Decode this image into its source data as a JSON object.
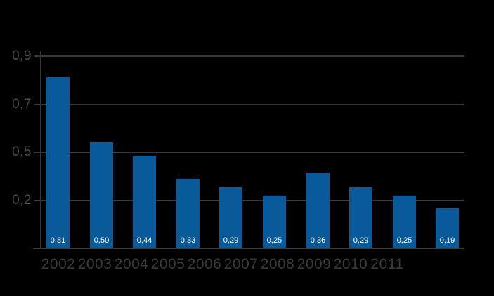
{
  "window": {
    "background_color": "#000000"
  },
  "chart_data": {
    "type": "bar",
    "title": "",
    "xlabel": "",
    "ylabel": "",
    "categories": [
      "2002",
      "2003",
      "2004",
      "2005",
      "2006",
      "2007",
      "2008",
      "2009",
      "2010",
      "2011"
    ],
    "values": [
      0.81,
      0.5,
      0.44,
      0.33,
      0.29,
      0.25,
      0.36,
      0.29,
      0.25,
      0.19
    ],
    "bar_value_labels": [
      "0,81",
      "0,50",
      "0,44",
      "0,33",
      "0,29",
      "0,25",
      "0,36",
      "0,29",
      "0,25",
      "0,19"
    ],
    "y_gridline_labels": [
      "0,9",
      "0,7",
      "0,5",
      "0,2"
    ],
    "decimal_separator": ",",
    "grid": true,
    "legend": "none",
    "colors": {
      "background": "#000000",
      "bar": "#085a9b",
      "gridline": "#3a3a3a",
      "axis": "#3a3a3a",
      "y_tick_label": "#4b4b4f",
      "x_category_label": "#3a3a3e",
      "bar_value_label": "#ffffff"
    }
  }
}
